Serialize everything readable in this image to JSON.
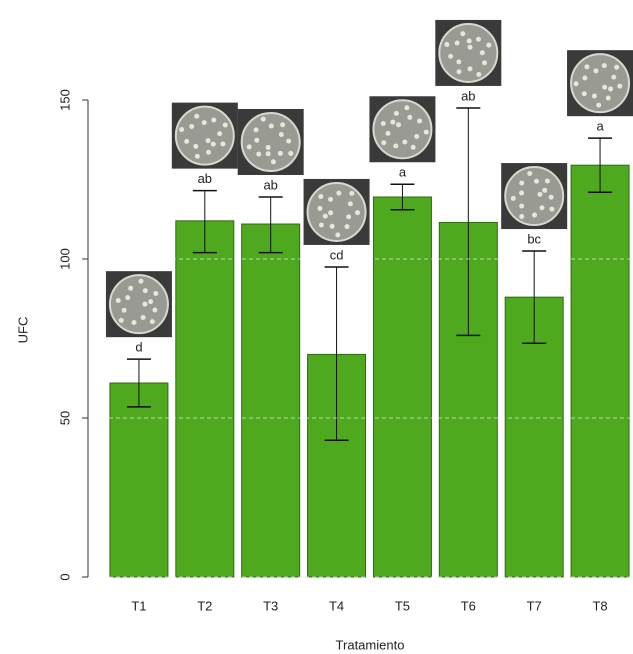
{
  "chart_data": {
    "type": "bar",
    "x_label": "Tratamiento",
    "y_label": "UFC",
    "categories": [
      "T1",
      "T2",
      "T3",
      "T4",
      "T5",
      "T6",
      "T7",
      "T8"
    ],
    "values": [
      61,
      112,
      111,
      70,
      119.5,
      111.5,
      88,
      129.5
    ],
    "error_lower": [
      53.5,
      102,
      102,
      43,
      115.5,
      76,
      73.5,
      121
    ],
    "error_upper": [
      68.5,
      121.5,
      119.5,
      97.5,
      123.5,
      147.5,
      102.5,
      138
    ],
    "annotations": [
      "d",
      "ab",
      "ab",
      "cd",
      "a",
      "ab",
      "bc",
      "a"
    ],
    "color": "#4ea91f",
    "ylim": [
      0,
      150
    ],
    "yticks": [
      0,
      50,
      100,
      150
    ],
    "grid": true
  }
}
